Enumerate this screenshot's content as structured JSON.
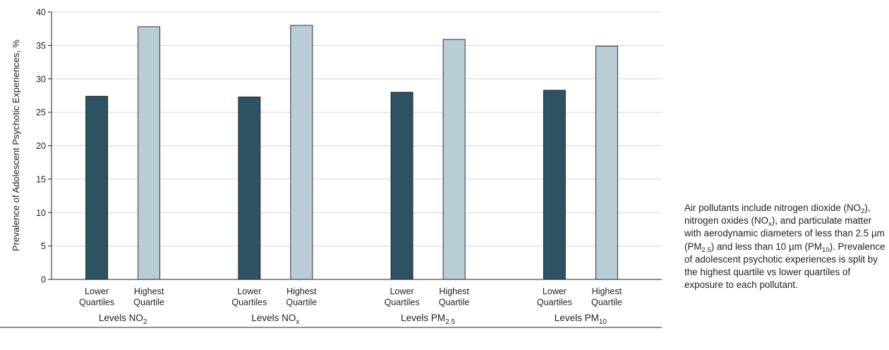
{
  "chart_data": {
    "type": "bar",
    "ylabel": "Prevalence of Adolescent Psychotic Experiences, %",
    "ylim": [
      0,
      40
    ],
    "yticks": [
      0,
      5,
      10,
      15,
      20,
      25,
      30,
      35,
      40
    ],
    "grid": true,
    "groups": [
      {
        "name": "Levels NO",
        "sub": "2"
      },
      {
        "name": "Levels NO",
        "sub": "x"
      },
      {
        "name": "Levels PM",
        "sub": "2.5"
      },
      {
        "name": "Levels PM",
        "sub": "10"
      }
    ],
    "series": [
      {
        "name": "Lower Quartiles",
        "label_lines": [
          "Lower",
          "Quartiles"
        ],
        "color": "#2d5262",
        "values": [
          27.4,
          27.3,
          28.0,
          28.3
        ]
      },
      {
        "name": "Highest Quartile",
        "label_lines": [
          "Highest",
          "Quartile"
        ],
        "color": "#b9cdd6",
        "values": [
          37.8,
          38.0,
          35.9,
          34.9
        ]
      }
    ]
  },
  "caption": {
    "p1": "Air pollutants include nitrogen dioxide (NO",
    "s1": "2",
    "p2": "), nitrogen oxides (NO",
    "s2": "x",
    "p3": "), and particulate matter with aerodynamic diameters of less than 2.5 µm (PM",
    "s3": "2.5",
    "p4": ") and less than 10 µm (PM",
    "s4": "10",
    "p5": "). Prevalence of adolescent psychotic experiences is split by the highest quartile vs lower quartiles of exposure to each pollutant."
  }
}
